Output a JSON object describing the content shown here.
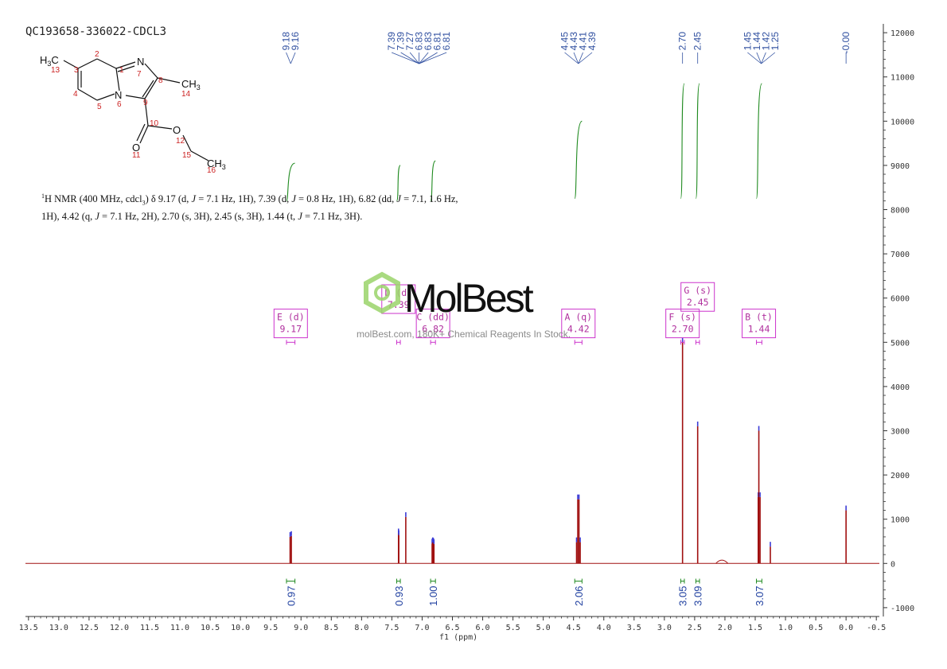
{
  "sample_id": "QC193658-336022-CDCL3",
  "nmr_description": {
    "nucleus": "1",
    "line1_a": "H NMR (400 MHz, cdcl",
    "line1_sub": "3",
    "line1_b": ") δ 9.17 (d, ",
    "j1": "J",
    "line1_c": " = 7.1 Hz, 1H), 7.39 (d, ",
    "j2": "J",
    "line1_d": " = 0.8 Hz, 1H), 6.82 (dd, ",
    "j3": "J",
    "line1_e": " = 7.1, 1.6 Hz,",
    "line2_a": "1H), 4.42 (q, ",
    "j4": "J",
    "line2_b": " = 7.1 Hz, 2H), 2.70 (s, 3H), 2.45 (s, 3H), 1.44 (t, ",
    "j5": "J",
    "line2_c": " = 7.1 Hz, 3H)."
  },
  "watermark": {
    "brand": "MolBest",
    "tagline": "molBest.com, 180K+ Chemical Reagents In Stock."
  },
  "structure": {
    "atoms": {
      "h3c": "H",
      "h3c_sub": "3",
      "h3c_c": "C",
      "n1": "N",
      "n2": "N",
      "ch3": "CH",
      "ch3_sub": "3",
      "o1": "O",
      "o2": "O",
      "ch3b": "CH",
      "ch3b_sub": "3"
    },
    "locants": [
      "13",
      "2",
      "3",
      "1",
      "7",
      "8",
      "14",
      "4",
      "5",
      "6",
      "9",
      "10",
      "12",
      "11",
      "15",
      "16"
    ]
  },
  "colors": {
    "spectrum": "#a01010",
    "peak_marker": "#3b3bd6",
    "integral": "#1f8a1f",
    "multiplet_box": "#cc33cc",
    "axis": "#333333"
  },
  "chart_data": {
    "type": "line",
    "xlabel": "f1 (ppm)",
    "x_reversed": true,
    "xlim": [
      -0.55,
      13.55
    ],
    "ylim": [
      -1200,
      12200
    ],
    "x_ticks": [
      "13.5",
      "13.0",
      "12.5",
      "12.0",
      "11.5",
      "11.0",
      "10.5",
      "10.0",
      "9.5",
      "9.0",
      "8.5",
      "8.0",
      "7.5",
      "7.0",
      "6.5",
      "6.0",
      "5.5",
      "5.0",
      "4.5",
      "4.0",
      "3.5",
      "3.0",
      "2.5",
      "2.0",
      "1.5",
      "1.0",
      "0.5",
      "0.0",
      "-0.5"
    ],
    "x_tick_values": [
      13.5,
      13.0,
      12.5,
      12.0,
      11.5,
      11.0,
      10.5,
      10.0,
      9.5,
      9.0,
      8.5,
      8.0,
      7.5,
      7.0,
      6.5,
      6.0,
      5.5,
      5.0,
      4.5,
      4.0,
      3.5,
      3.0,
      2.5,
      2.0,
      1.5,
      1.0,
      0.5,
      0.0,
      -0.5
    ],
    "y_ticks": [
      "12000",
      "11000",
      "10000",
      "9000",
      "8000",
      "7000",
      "6000",
      "5000",
      "4000",
      "3000",
      "2000",
      "1000",
      "0",
      "-1000"
    ],
    "y_tick_values": [
      12000,
      11000,
      10000,
      9000,
      8000,
      7000,
      6000,
      5000,
      4000,
      3000,
      2000,
      1000,
      0,
      -1000
    ],
    "peaks": [
      {
        "ppm": 9.18,
        "height": 600
      },
      {
        "ppm": 9.16,
        "height": 620
      },
      {
        "ppm": 7.39,
        "height": 680
      },
      {
        "ppm": 7.385,
        "height": 640
      },
      {
        "ppm": 7.27,
        "height": 1050
      },
      {
        "ppm": 6.835,
        "height": 450
      },
      {
        "ppm": 6.825,
        "height": 480
      },
      {
        "ppm": 6.815,
        "height": 470
      },
      {
        "ppm": 6.805,
        "height": 440
      },
      {
        "ppm": 4.45,
        "height": 480
      },
      {
        "ppm": 4.43,
        "height": 1450
      },
      {
        "ppm": 4.41,
        "height": 1450
      },
      {
        "ppm": 4.39,
        "height": 480
      },
      {
        "ppm": 2.7,
        "height": 5000
      },
      {
        "ppm": 2.45,
        "height": 3100
      },
      {
        "ppm": 1.45,
        "height": 1500
      },
      {
        "ppm": 1.44,
        "height": 3000
      },
      {
        "ppm": 1.42,
        "height": 1500
      },
      {
        "ppm": 1.25,
        "height": 380
      },
      {
        "ppm": 0.0,
        "height": 1200
      }
    ],
    "peak_label_groups": [
      {
        "labels": [
          "9.18",
          "9.16"
        ],
        "ppm": 9.17
      },
      {
        "labels": [
          "7.39",
          "7.39",
          "7.27",
          "6.83",
          "6.83",
          "6.81",
          "6.81"
        ],
        "ppm": 7.05
      },
      {
        "labels": [
          "4.45",
          "4.43",
          "4.41",
          "4.39"
        ],
        "ppm": 4.42
      },
      {
        "labels": [
          "2.70"
        ],
        "ppm": 2.7
      },
      {
        "labels": [
          "2.45"
        ],
        "ppm": 2.45
      },
      {
        "labels": [
          "1.45",
          "1.44",
          "1.42",
          "1.25"
        ],
        "ppm": 1.4
      },
      {
        "labels": [
          "-0.00"
        ],
        "ppm": 0.0
      }
    ],
    "integrals": [
      {
        "value": "0.97",
        "from": 9.24,
        "to": 9.1,
        "curve_y": [
          8200,
          9050
        ]
      },
      {
        "value": "0.93",
        "from": 7.42,
        "to": 7.36,
        "curve_y": [
          8200,
          9000
        ]
      },
      {
        "value": "1.00",
        "from": 6.86,
        "to": 6.78,
        "curve_y": [
          8200,
          9100
        ]
      },
      {
        "value": "2.06",
        "from": 4.48,
        "to": 4.36,
        "curve_y": [
          8250,
          10000
        ]
      },
      {
        "value": "3.05",
        "from": 2.73,
        "to": 2.67,
        "curve_y": [
          8250,
          10850
        ]
      },
      {
        "value": "3.09",
        "from": 2.48,
        "to": 2.42,
        "curve_y": [
          8250,
          10850
        ]
      },
      {
        "value": "3.07",
        "from": 1.48,
        "to": 1.39,
        "curve_y": [
          8250,
          10850
        ]
      }
    ],
    "multiplets": [
      {
        "id": "E",
        "type": "d",
        "shift": "9.17",
        "ppm": 9.17,
        "range": [
          9.24,
          9.1
        ],
        "box_y": 5750
      },
      {
        "id": "D",
        "type": "d",
        "shift": "7.39",
        "ppm": 7.39,
        "range": [
          7.42,
          7.36
        ],
        "box_y": 6300
      },
      {
        "id": "C",
        "type": "dd",
        "shift": "6.82",
        "ppm": 6.82,
        "range": [
          6.86,
          6.78
        ],
        "box_y": 5750
      },
      {
        "id": "A",
        "type": "q",
        "shift": "4.42",
        "ppm": 4.42,
        "range": [
          4.48,
          4.36
        ],
        "box_y": 5750
      },
      {
        "id": "F",
        "type": "s",
        "shift": "2.70",
        "ppm": 2.7,
        "range": [
          2.73,
          2.67
        ],
        "box_y": 5750
      },
      {
        "id": "G",
        "type": "s",
        "shift": "2.45",
        "ppm": 2.45,
        "range": [
          2.48,
          2.42
        ],
        "box_y": 6350
      },
      {
        "id": "B",
        "type": "t",
        "shift": "1.44",
        "ppm": 1.44,
        "range": [
          1.48,
          1.39
        ],
        "box_y": 5750
      }
    ]
  }
}
